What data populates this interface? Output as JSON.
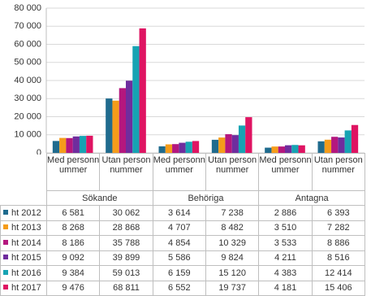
{
  "chart_data": {
    "type": "bar",
    "categories": [
      "Med personnummer",
      "Utan personnummer",
      "Med personnummer",
      "Utan personnummer",
      "Med personnummer",
      "Utan personnummer"
    ],
    "category_groups": [
      "Sökande",
      "Behöriga",
      "Antagna"
    ],
    "series": [
      {
        "name": "ht 2012",
        "color": "#1f6b8e",
        "values": [
          6581,
          30062,
          3614,
          7238,
          2886,
          6393
        ],
        "value_labels": [
          "6 581",
          "30 062",
          "3 614",
          "7 238",
          "2 886",
          "6 393"
        ]
      },
      {
        "name": "ht 2013",
        "color": "#f59c1a",
        "values": [
          8268,
          28868,
          4707,
          8482,
          3510,
          7282
        ],
        "value_labels": [
          "8 268",
          "28 868",
          "4 707",
          "8 482",
          "3 510",
          "7 282"
        ]
      },
      {
        "name": "ht 2014",
        "color": "#b4177e",
        "values": [
          8186,
          35788,
          4854,
          10329,
          3533,
          8886
        ],
        "value_labels": [
          "8 186",
          "35 788",
          "4 854",
          "10 329",
          "3 533",
          "8 886"
        ]
      },
      {
        "name": "ht 2015",
        "color": "#6f2d9e",
        "values": [
          9092,
          39899,
          5586,
          9824,
          4211,
          8516
        ],
        "value_labels": [
          "9 092",
          "39 899",
          "5 586",
          "9 824",
          "4 211",
          "8 516"
        ]
      },
      {
        "name": "ht 2016",
        "color": "#17a3b3",
        "values": [
          9384,
          59013,
          6159,
          15120,
          4383,
          12414
        ],
        "value_labels": [
          "9 384",
          "59 013",
          "6 159",
          "15 120",
          "4 383",
          "12 414"
        ]
      },
      {
        "name": "ht 2017",
        "color": "#df1462",
        "values": [
          9476,
          68811,
          6552,
          19737,
          4181,
          15406
        ],
        "value_labels": [
          "9 476",
          "68 811",
          "6 552",
          "19 737",
          "4 181",
          "15 406"
        ]
      }
    ],
    "ylim": [
      0,
      80000
    ],
    "yticks": [
      0,
      {
        "value": 10000,
        "label": "10 000"
      },
      {
        "value": 20000,
        "label": "20 000"
      },
      {
        "value": 30000,
        "label": "30 000"
      },
      {
        "value": 40000,
        "label": "40 000"
      },
      {
        "value": 50000,
        "label": "50 000"
      },
      {
        "value": 60000,
        "label": "60 000"
      },
      {
        "value": 70000,
        "label": "70 000"
      },
      {
        "value": 80000,
        "label": "80 000"
      }
    ],
    "grid": true
  }
}
